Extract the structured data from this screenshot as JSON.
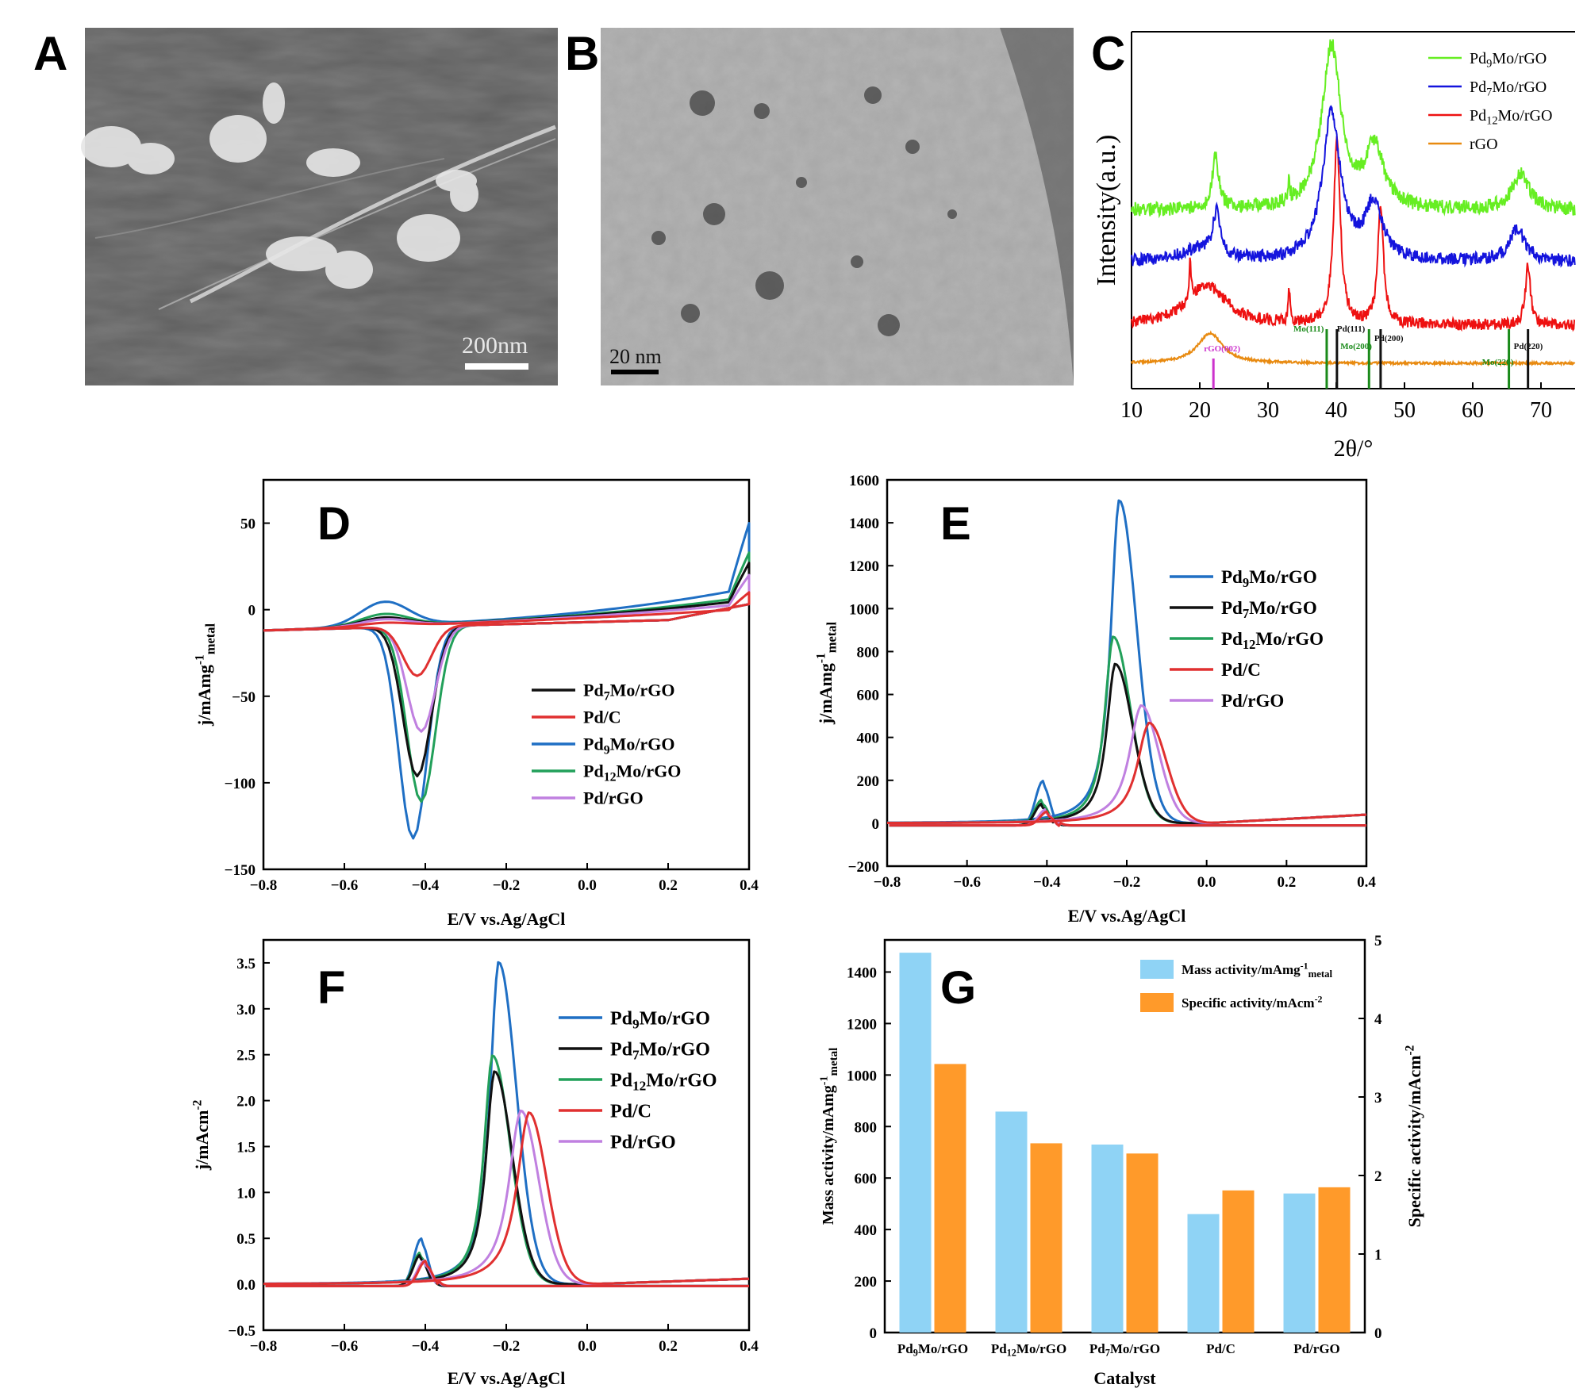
{
  "panels": {
    "A": {
      "letter": "A",
      "scale_bar": "200nm"
    },
    "B": {
      "letter": "B",
      "scale_bar": "20 nm"
    },
    "C": {
      "letter": "C"
    },
    "D": {
      "letter": "D"
    },
    "E": {
      "letter": "E"
    },
    "F": {
      "letter": "F"
    },
    "G": {
      "letter": "G"
    }
  },
  "colors": {
    "Pd9Mo": "#1f6fc4",
    "Pd7Mo": "#111111",
    "Pd12Mo": "#22a05a",
    "PdC": "#e03030",
    "PdrGO": "#c080e0",
    "xrd_green": "#66ee22",
    "xrd_blue": "#1414dd",
    "xrd_red": "#ee1111",
    "xrd_orange": "#e88a10",
    "bar_mass": "#8fd3f5",
    "bar_specific": "#ff9a2a"
  },
  "chart_data": [
    {
      "id": "C",
      "type": "line",
      "title": "",
      "xlabel": "2θ/°",
      "ylabel": "Intensity(a.u.)",
      "xlim": [
        10,
        75
      ],
      "xticks": [
        10,
        20,
        30,
        40,
        50,
        60,
        70
      ],
      "legend": [
        "Pd9Mo/rGO",
        "Pd7Mo/rGO",
        "Pd12Mo/rGO",
        "rGO"
      ],
      "reference_lines": [
        {
          "label": "rGO(002)",
          "x": 22
        },
        {
          "label": "Mo(111)",
          "x": 38.6
        },
        {
          "label": "Pd(111)",
          "x": 40.1
        },
        {
          "label": "Mo(200)",
          "x": 44.8
        },
        {
          "label": "Pd(200)",
          "x": 46.5
        },
        {
          "label": "Mo(220)",
          "x": 65.3
        },
        {
          "label": "Pd(220)",
          "x": 68.1
        }
      ]
    },
    {
      "id": "D",
      "type": "line",
      "xlabel": "E/V vs.Ag/AgCl",
      "ylabel": "j/mAmg⁻¹metal",
      "xlim": [
        -0.8,
        0.4
      ],
      "ylim": [
        -150,
        75
      ],
      "xticks": [
        -0.8,
        -0.6,
        -0.4,
        -0.2,
        0.0,
        0.2,
        0.4
      ],
      "yticks": [
        -150,
        -100,
        -50,
        0,
        50
      ],
      "legend": [
        "Pd7Mo/rGO",
        "Pd/C",
        "Pd9Mo/rGO",
        "Pd12Mo/rGO",
        "Pd/rGO"
      ],
      "series": [
        {
          "name": "Pd9Mo/rGO",
          "peak_x": -0.43,
          "peak_y": -133
        },
        {
          "name": "Pd12Mo/rGO",
          "peak_x": -0.41,
          "peak_y": -110
        },
        {
          "name": "Pd7Mo/rGO",
          "peak_x": -0.42,
          "peak_y": -94
        },
        {
          "name": "Pd/rGO",
          "peak_x": -0.41,
          "peak_y": -66
        },
        {
          "name": "Pd/C",
          "peak_x": -0.42,
          "peak_y": -31
        }
      ]
    },
    {
      "id": "E",
      "type": "line",
      "xlabel": "E/V vs.Ag/AgCl",
      "ylabel": "j/mAmg⁻¹metal",
      "xlim": [
        -0.8,
        0.4
      ],
      "ylim": [
        -200,
        1600
      ],
      "xticks": [
        -0.8,
        -0.6,
        -0.4,
        -0.2,
        0.0,
        0.2,
        0.4
      ],
      "yticks": [
        -200,
        0,
        200,
        400,
        600,
        800,
        1000,
        1200,
        1400,
        1600
      ],
      "legend": [
        "Pd9Mo/rGO",
        "Pd7Mo/rGO",
        "Pd12Mo/rGO",
        "Pd/C",
        "Pd/rGO"
      ],
      "series": [
        {
          "name": "Pd9Mo/rGO",
          "peak_x": -0.22,
          "peak_y": 1480
        },
        {
          "name": "Pd12Mo/rGO",
          "peak_x": -0.235,
          "peak_y": 855
        },
        {
          "name": "Pd7Mo/rGO",
          "peak_x": -0.23,
          "peak_y": 730
        },
        {
          "name": "Pd/rGO",
          "peak_x": -0.165,
          "peak_y": 540
        },
        {
          "name": "Pd/C",
          "peak_x": -0.145,
          "peak_y": 460
        }
      ]
    },
    {
      "id": "F",
      "type": "line",
      "xlabel": "E/V vs.Ag/AgCl",
      "ylabel": "j/mAcm⁻²",
      "xlim": [
        -0.8,
        0.4
      ],
      "ylim": [
        -0.5,
        3.75
      ],
      "xticks": [
        -0.8,
        -0.6,
        -0.4,
        -0.2,
        0.0,
        0.2,
        0.4
      ],
      "yticks": [
        -0.5,
        0.0,
        0.5,
        1.0,
        1.5,
        2.0,
        2.5,
        3.0,
        3.5
      ],
      "legend": [
        "Pd9Mo/rGO",
        "Pd7Mo/rGO",
        "Pd12Mo/rGO",
        "Pd/C",
        "Pd/rGO"
      ],
      "series": [
        {
          "name": "Pd9Mo/rGO",
          "peak_x": -0.22,
          "peak_y": 3.45
        },
        {
          "name": "Pd12Mo/rGO",
          "peak_x": -0.235,
          "peak_y": 2.45
        },
        {
          "name": "Pd7Mo/rGO",
          "peak_x": -0.23,
          "peak_y": 2.28
        },
        {
          "name": "Pd/rGO",
          "peak_x": -0.165,
          "peak_y": 1.86
        },
        {
          "name": "Pd/C",
          "peak_x": -0.145,
          "peak_y": 1.84
        }
      ]
    },
    {
      "id": "G",
      "type": "bar",
      "xlabel": "Catalyst",
      "ylabel": "Mass activity/mAmg⁻¹metal",
      "y2label": "Specific activity/mAcm⁻²",
      "ylim": [
        0,
        1500
      ],
      "y2lim": [
        0,
        5
      ],
      "yticks": [
        0,
        200,
        400,
        600,
        800,
        1000,
        1200,
        1400
      ],
      "y2ticks": [
        0,
        1,
        2,
        3,
        4,
        5
      ],
      "categories": [
        "Pd9Mo/rGO",
        "Pd12Mo/rGO",
        "Pd7Mo/rGO",
        "Pd/C",
        "Pd/rGO"
      ],
      "series": [
        {
          "name": "Mass activity/mAmg⁻¹metal",
          "axis": "left",
          "values": [
            1475,
            858,
            730,
            460,
            540
          ]
        },
        {
          "name": "Specific activity/mAcm⁻²",
          "axis": "right",
          "values": [
            3.42,
            2.41,
            2.28,
            1.81,
            1.85
          ]
        }
      ],
      "legend_position": "top-right"
    }
  ]
}
